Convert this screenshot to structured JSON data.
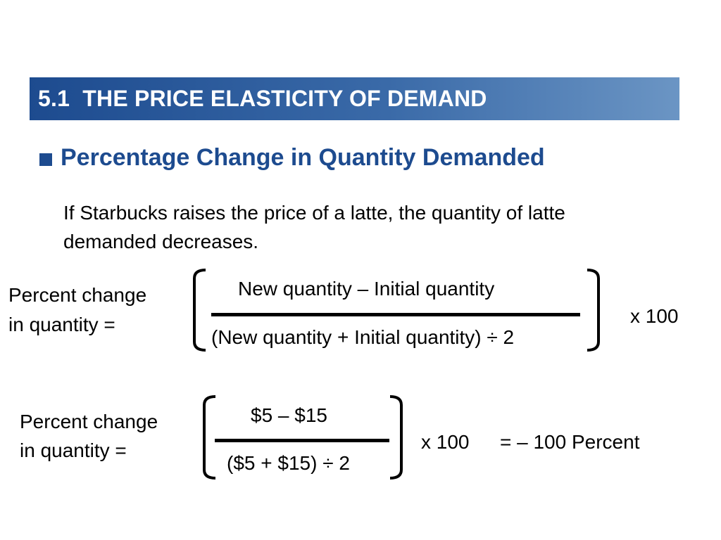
{
  "slide": {
    "section_title": "5.1  THE PRICE ELASTICITY OF DEMAND",
    "heading": "Percentage Change in Quantity Demanded",
    "body": "If Starbucks raises the price of a latte, the quantity of latte demanded decreases."
  },
  "formula_general": {
    "label_line1": "Percent change",
    "label_line2": "in quantity =",
    "numerator": "New quantity – Initial quantity",
    "denominator": "(New quantity + Initial quantity) ÷ 2",
    "multiplier": "x 100"
  },
  "formula_example": {
    "label_line1": "Percent change",
    "label_line2": "in quantity =",
    "numerator": "$5 – $15",
    "denominator": "($5 + $15) ÷ 2",
    "multiplier": "x 100",
    "result": "= – 100 Percent"
  },
  "colors": {
    "banner_dark": "#1d4b8f",
    "banner_light": "#6b95c4",
    "heading": "#1d4b8f"
  }
}
